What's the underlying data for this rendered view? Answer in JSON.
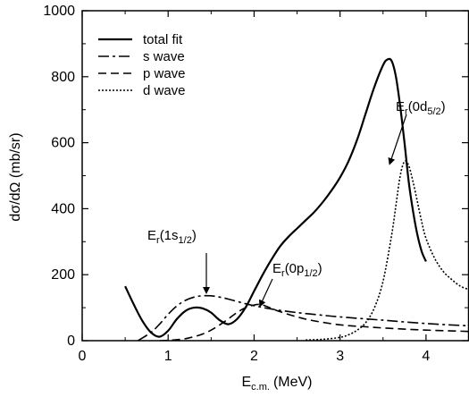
{
  "chart_data": {
    "type": "line",
    "xlabel": "E",
    "xlabel_sub": "c.m.",
    "xlabel_unit": "(MeV)",
    "ylabel": "dσ/dΩ (mb/sr)",
    "xlim": [
      0,
      4.5
    ],
    "ylim": [
      0,
      1000
    ],
    "xticks": [
      0,
      1,
      2,
      3,
      4
    ],
    "yticks": [
      0,
      200,
      400,
      600,
      800,
      1000
    ],
    "grid": false,
    "legend_position": "top-left",
    "series": [
      {
        "name": "total fit",
        "style": "solid",
        "x": [
          0.5,
          0.6,
          0.7,
          0.8,
          0.9,
          1.0,
          1.1,
          1.2,
          1.3,
          1.4,
          1.5,
          1.6,
          1.7,
          1.8,
          1.9,
          2.0,
          2.1,
          2.2,
          2.3,
          2.4,
          2.5,
          2.6,
          2.7,
          2.8,
          2.9,
          3.0,
          3.1,
          3.2,
          3.3,
          3.4,
          3.5,
          3.55,
          3.6,
          3.65,
          3.7,
          3.75,
          3.8,
          3.85,
          3.9,
          3.95,
          4.0
        ],
        "y": [
          165,
          110,
          60,
          25,
          12,
          30,
          65,
          90,
          100,
          98,
          85,
          62,
          50,
          65,
          100,
          150,
          200,
          245,
          285,
          315,
          340,
          365,
          390,
          420,
          455,
          495,
          545,
          610,
          690,
          770,
          835,
          852,
          848,
          800,
          710,
          600,
          480,
          390,
          320,
          270,
          240
        ]
      },
      {
        "name": "s wave",
        "style": "dash-dot",
        "x": [
          0.65,
          0.8,
          0.9,
          1.0,
          1.1,
          1.2,
          1.3,
          1.4,
          1.5,
          1.6,
          1.7,
          1.8,
          1.9,
          2.0,
          2.2,
          2.5,
          2.8,
          3.0,
          3.5,
          4.0,
          4.5
        ],
        "y": [
          0,
          25,
          50,
          80,
          105,
          122,
          132,
          136,
          136,
          132,
          126,
          119,
          112,
          106,
          96,
          85,
          77,
          72,
          62,
          52,
          45
        ]
      },
      {
        "name": "p wave",
        "style": "dashed",
        "x": [
          0.9,
          1.0,
          1.1,
          1.2,
          1.3,
          1.4,
          1.5,
          1.6,
          1.7,
          1.8,
          1.9,
          2.0,
          2.05,
          2.1,
          2.2,
          2.3,
          2.5,
          2.7,
          3.0,
          3.3,
          3.6,
          4.0,
          4.5
        ],
        "y": [
          0,
          1,
          3,
          6,
          12,
          20,
          32,
          48,
          66,
          85,
          100,
          108,
          110,
          108,
          98,
          88,
          72,
          60,
          48,
          42,
          37,
          32,
          28
        ]
      },
      {
        "name": "d wave",
        "style": "dotted",
        "x": [
          2.6,
          2.8,
          3.0,
          3.1,
          3.2,
          3.3,
          3.4,
          3.5,
          3.6,
          3.65,
          3.7,
          3.75,
          3.8,
          3.85,
          3.9,
          3.95,
          4.0,
          4.1,
          4.2,
          4.3,
          4.4,
          4.5
        ],
        "y": [
          2,
          4,
          10,
          18,
          32,
          55,
          100,
          180,
          320,
          410,
          500,
          543,
          530,
          480,
          420,
          360,
          310,
          250,
          210,
          185,
          165,
          155
        ]
      }
    ],
    "annotations": [
      {
        "label": "E",
        "sub_r": "r",
        "text_rest": "(1s",
        "sub_j": "1/2",
        "close": ")",
        "x": 1.4,
        "y": 250,
        "arrow_to": [
          1.4,
          140
        ]
      },
      {
        "label": "E",
        "sub_r": "r",
        "text_rest": "(0p",
        "sub_j": "1/2",
        "close": ")",
        "x": 2.15,
        "y": 180,
        "arrow_to": [
          2.05,
          112
        ]
      },
      {
        "label": "E",
        "sub_r": "r",
        "text_rest": "(0d",
        "sub_j": "5/2",
        "close": ")",
        "x": 3.6,
        "y": 790,
        "arrow_to": [
          3.75,
          545
        ]
      }
    ]
  }
}
